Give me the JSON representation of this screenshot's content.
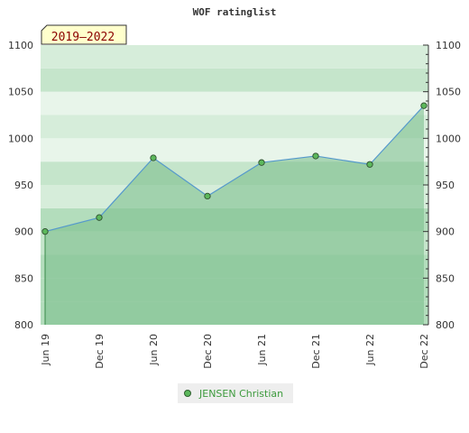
{
  "chart_data": {
    "type": "area",
    "title": "WOF ratinglist",
    "period": "2019–2022",
    "x": [
      "Jun 19",
      "Dec 19",
      "Jun 20",
      "Dec 20",
      "Jun 21",
      "Dec 21",
      "Jun 22",
      "Dec 22"
    ],
    "series": [
      {
        "name": "JENSEN Christian",
        "values": [
          900,
          915,
          979,
          938,
          974,
          981,
          972,
          1035
        ]
      }
    ],
    "ylim": [
      800,
      1100
    ],
    "yticks": [
      800,
      850,
      900,
      950,
      1000,
      1050,
      1100
    ],
    "colors": {
      "area": "#77bb88",
      "line": "#5599cc",
      "marker": "#5cb85c",
      "band_dark": "#9fd4ac",
      "band_light": "#ffffff"
    }
  }
}
